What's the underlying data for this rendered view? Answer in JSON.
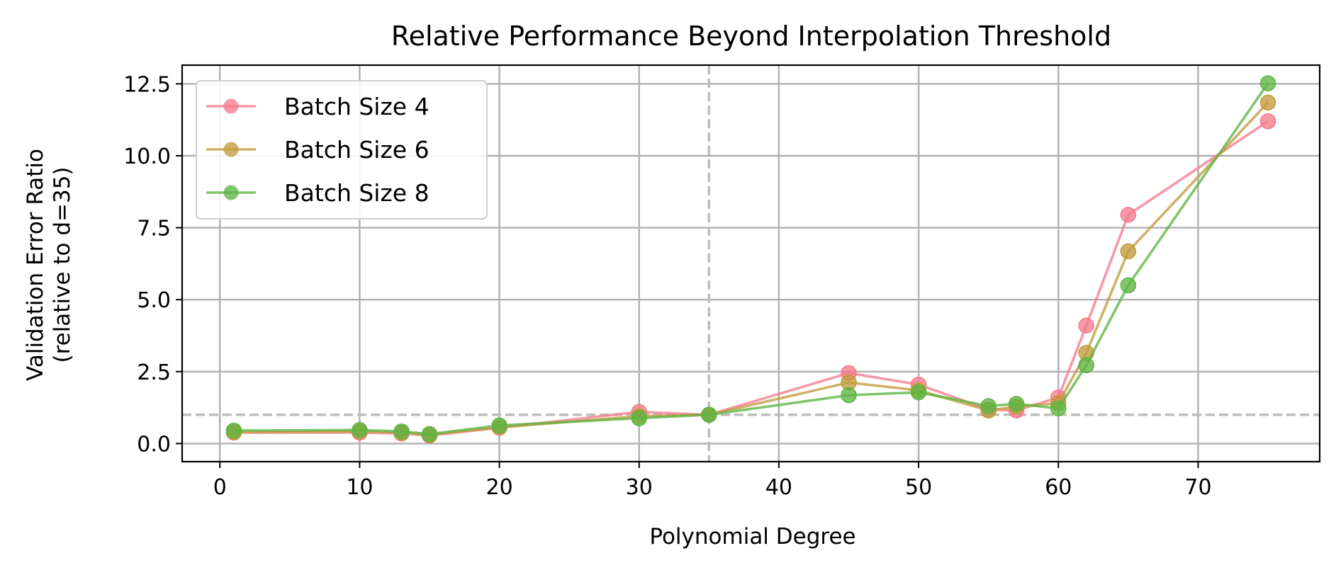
{
  "chart_data": {
    "type": "line",
    "title": "Relative Performance Beyond Interpolation Threshold",
    "xlabel": "Polynomial Degree",
    "ylabel_line1": "Validation Error Ratio",
    "ylabel_line2": "(relative to d=35)",
    "xlim": [
      -2.7,
      78.7
    ],
    "ylim": [
      -0.63,
      13.15
    ],
    "xticks": [
      0,
      10,
      20,
      30,
      40,
      50,
      60,
      70
    ],
    "xtick_labels": [
      "0",
      "10",
      "20",
      "30",
      "40",
      "50",
      "60",
      "70"
    ],
    "yticks": [
      0,
      2.5,
      5,
      7.5,
      10,
      12.5
    ],
    "ytick_labels": [
      "0.0",
      "2.5",
      "5.0",
      "7.5",
      "10.0",
      "12.5"
    ],
    "grid": true,
    "legend_position": "top-left",
    "reference_lines": [
      {
        "orientation": "vertical",
        "value": 35,
        "style": "dashed",
        "color": "#bdbdbd"
      },
      {
        "orientation": "horizontal",
        "value": 1.0,
        "style": "dashed",
        "color": "#bdbdbd"
      }
    ],
    "x": [
      1,
      10,
      13,
      15,
      20,
      30,
      35,
      45,
      50,
      55,
      57,
      60,
      62,
      65,
      75
    ],
    "series": [
      {
        "name": "Batch Size 4",
        "color": "#f37b8e",
        "values": [
          0.38,
          0.38,
          0.35,
          0.28,
          0.55,
          1.1,
          1.0,
          2.45,
          2.05,
          1.18,
          1.15,
          1.6,
          4.1,
          7.95,
          11.2
        ]
      },
      {
        "name": "Batch Size 6",
        "color": "#c29b3c",
        "values": [
          0.4,
          0.42,
          0.38,
          0.3,
          0.56,
          0.95,
          1.0,
          2.12,
          1.85,
          1.15,
          1.28,
          1.4,
          3.15,
          6.68,
          11.85
        ]
      },
      {
        "name": "Batch Size 8",
        "color": "#5db543",
        "values": [
          0.45,
          0.47,
          0.42,
          0.33,
          0.63,
          0.88,
          1.0,
          1.68,
          1.78,
          1.3,
          1.38,
          1.22,
          2.72,
          5.5,
          12.52
        ]
      }
    ]
  }
}
